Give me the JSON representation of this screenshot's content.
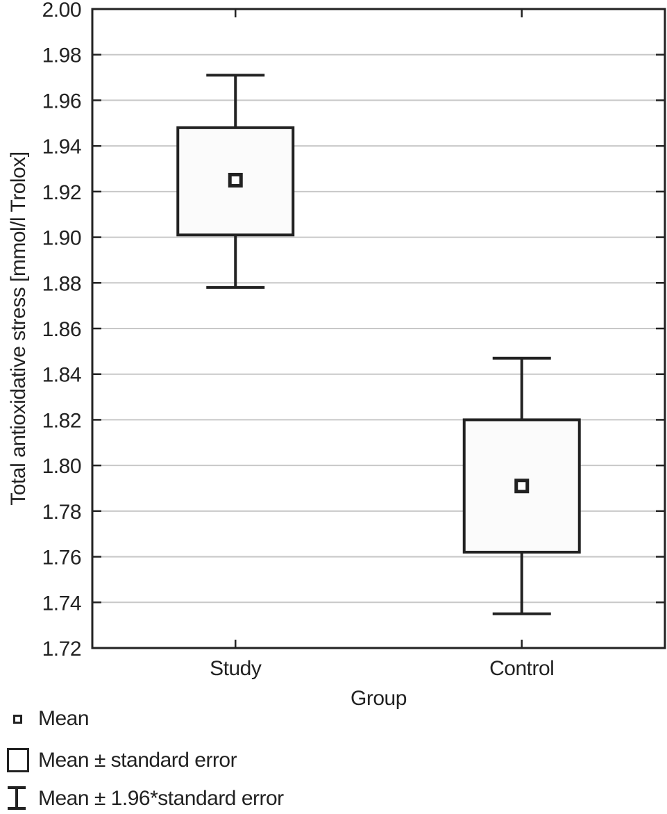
{
  "chart_data": {
    "type": "boxplot",
    "title": "",
    "xlabel": "Group",
    "ylabel": "Total antioxidative stress [mmol/l Trolox]",
    "ylim": [
      1.72,
      2.0
    ],
    "ytick_step": 0.02,
    "ytick_format_decimals": 2,
    "grid": "horizontal",
    "legend_position": "bottom-left",
    "categories": [
      "Study",
      "Control"
    ],
    "series": [
      {
        "category": "Study",
        "mean": 1.925,
        "se_low": 1.901,
        "se_high": 1.948,
        "ci_low": 1.878,
        "ci_high": 1.971
      },
      {
        "category": "Control",
        "mean": 1.791,
        "se_low": 1.762,
        "se_high": 1.82,
        "ci_low": 1.735,
        "ci_high": 1.847
      }
    ],
    "legend": [
      {
        "symbol": "mean-square",
        "label": "Mean"
      },
      {
        "symbol": "se-box",
        "label": "Mean ± standard error"
      },
      {
        "symbol": "ci-whisker",
        "label": "Mean ± 1.96*standard error"
      }
    ],
    "colors": {
      "line": "#222222",
      "grid": "#c8c8c8",
      "box_fill": "#fbfbfb",
      "marker_fill": "#ffffff",
      "background": "#ffffff",
      "text": "#222222"
    }
  }
}
